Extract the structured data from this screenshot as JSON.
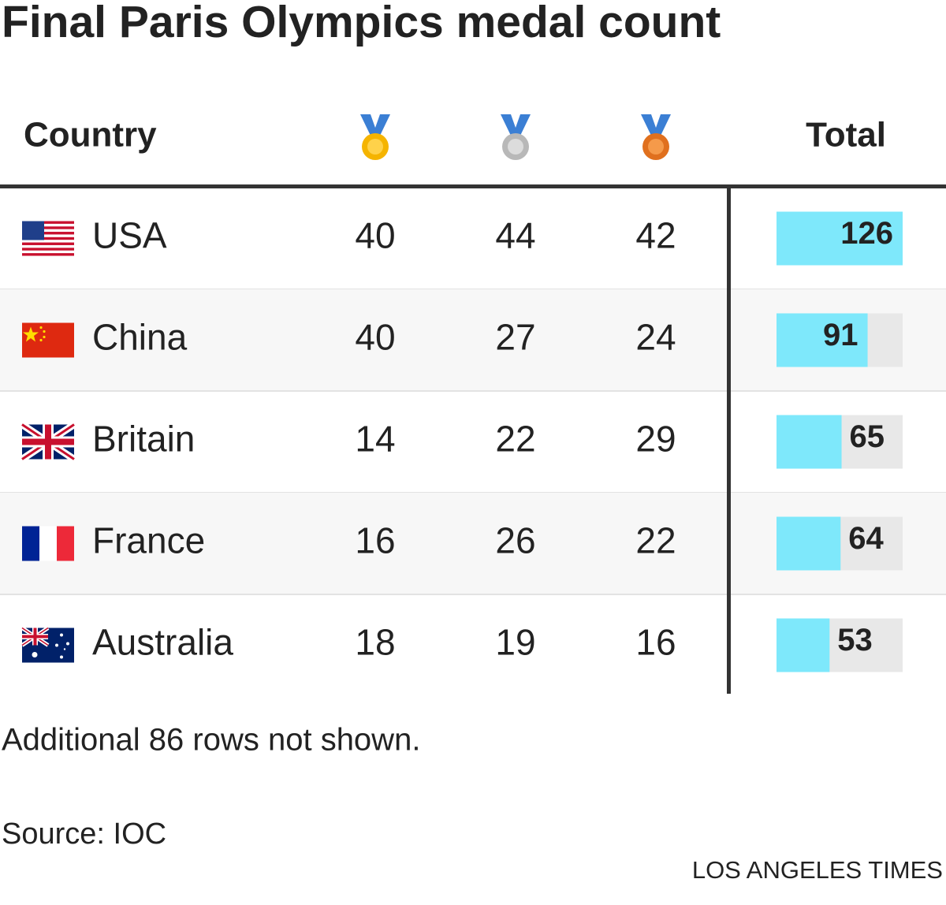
{
  "title": "Final Paris Olympics medal count",
  "header": {
    "country": "Country",
    "total": "Total"
  },
  "rows": [
    {
      "country": "USA",
      "gold": 40,
      "silver": 44,
      "bronze": 42,
      "total": 126
    },
    {
      "country": "China",
      "gold": 40,
      "silver": 27,
      "bronze": 24,
      "total": 91
    },
    {
      "country": "Britain",
      "gold": 14,
      "silver": 22,
      "bronze": 29,
      "total": 65
    },
    {
      "country": "France",
      "gold": 16,
      "silver": 26,
      "bronze": 22,
      "total": 64
    },
    {
      "country": "Australia",
      "gold": 18,
      "silver": 19,
      "bronze": 16,
      "total": 53
    }
  ],
  "note": "Additional 86 rows not shown.",
  "source": "Source: IOC",
  "credit": "LOS ANGELES TIMES"
}
